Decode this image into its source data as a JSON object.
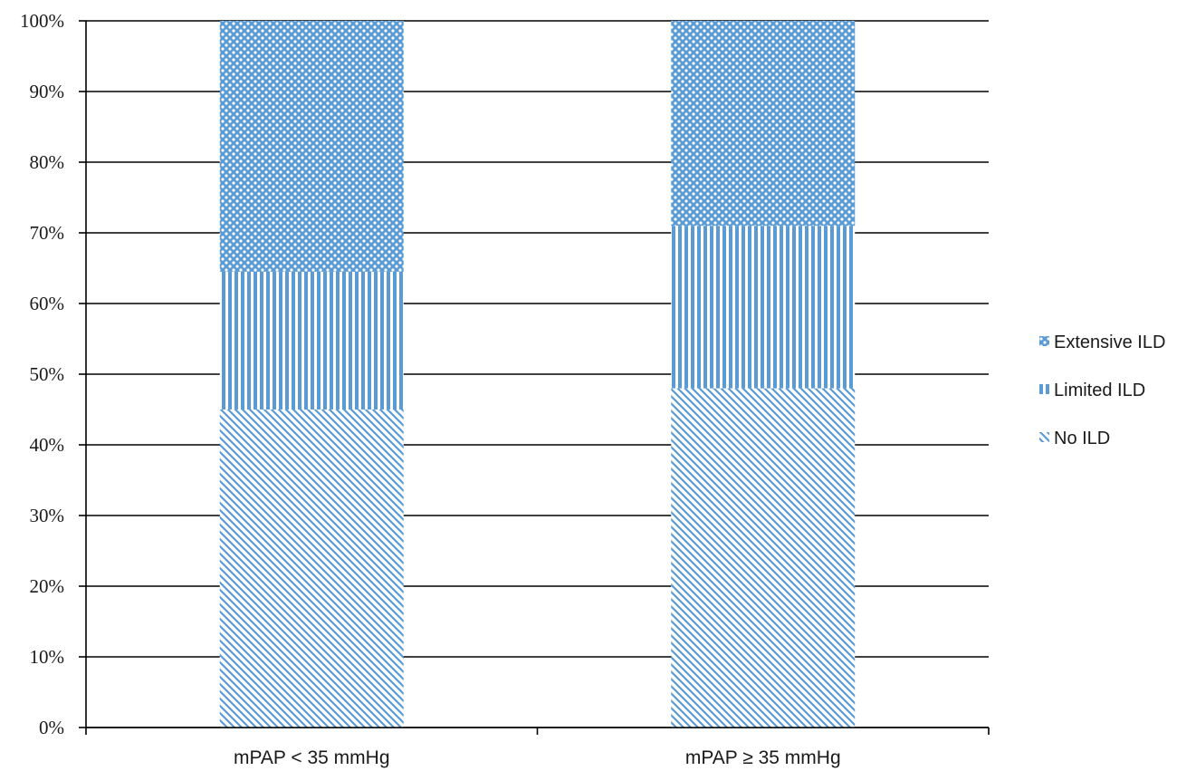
{
  "chart_data": {
    "type": "bar",
    "stacked": true,
    "percent": true,
    "categories": [
      "mPAP < 35 mmHg",
      "mPAP ≥ 35 mmHg"
    ],
    "series": [
      {
        "name": "No ILD",
        "values": [
          45,
          48
        ],
        "pattern": "diagonal",
        "color": "#5b9bd5"
      },
      {
        "name": "Limited ILD",
        "values": [
          19.5,
          23
        ],
        "pattern": "vertical",
        "color": "#5b9bd5"
      },
      {
        "name": "Extensive ILD",
        "values": [
          35.5,
          29
        ],
        "pattern": "dots",
        "color": "#5b9bd5"
      }
    ],
    "yticks": [
      "0%",
      "10%",
      "20%",
      "30%",
      "40%",
      "50%",
      "60%",
      "70%",
      "80%",
      "90%",
      "100%"
    ],
    "ylim": [
      0,
      100
    ],
    "grid": true,
    "legend_position": "right",
    "title": "",
    "xlabel": "",
    "ylabel": ""
  }
}
